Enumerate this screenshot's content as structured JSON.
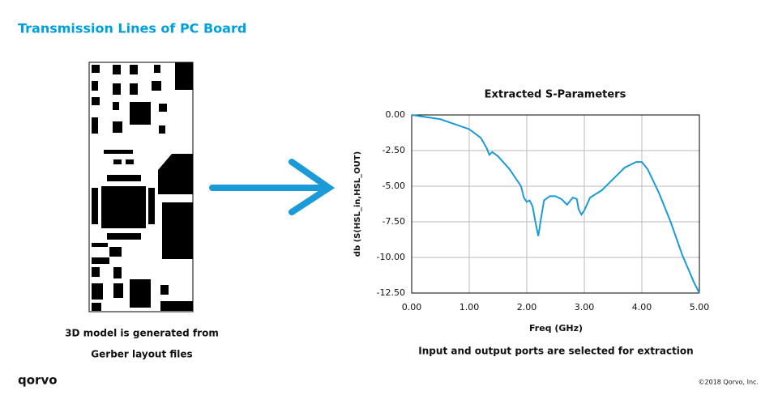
{
  "slide_title": "Transmission Lines of PC Board",
  "left_caption": [
    "3D model is generated from",
    "Gerber layout files"
  ],
  "right_caption": "Input and output ports are selected for extraction",
  "logo": "qorvo",
  "copyright": "©2018 Qorvo, Inc.",
  "chart_data": {
    "type": "line",
    "title": "Extracted S-Parameters",
    "xlabel": "Freq (GHz)",
    "ylabel": "db (S(HSL_in,HSL_OUT)",
    "x": [
      0,
      0.5,
      1.0,
      1.2,
      1.3,
      1.35,
      1.4,
      1.5,
      1.7,
      1.9,
      1.95,
      2.0,
      2.05,
      2.1,
      2.15,
      2.2,
      2.25,
      2.3,
      2.4,
      2.5,
      2.6,
      2.7,
      2.8,
      2.87,
      2.9,
      2.95,
      3.0,
      3.1,
      3.3,
      3.5,
      3.7,
      3.9,
      4.0,
      4.1,
      4.3,
      4.5,
      4.7,
      4.9,
      5.0
    ],
    "values": [
      0,
      -0.3,
      -1.0,
      -1.6,
      -2.3,
      -2.8,
      -2.6,
      -2.9,
      -3.8,
      -5.0,
      -5.8,
      -6.1,
      -6.0,
      -6.4,
      -7.5,
      -8.5,
      -7.2,
      -6.0,
      -5.7,
      -5.7,
      -5.9,
      -6.3,
      -5.8,
      -5.9,
      -6.6,
      -7.0,
      -6.7,
      -5.8,
      -5.3,
      -4.5,
      -3.7,
      -3.3,
      -3.3,
      -3.8,
      -5.5,
      -7.5,
      -9.8,
      -11.7,
      -12.5
    ],
    "color": "#1a9ad6",
    "xlim": [
      0,
      5
    ],
    "xticks": [
      {
        "value": 0,
        "label": "0.00"
      },
      {
        "value": 1,
        "label": "1.00"
      },
      {
        "value": 2,
        "label": "2.00"
      },
      {
        "value": 3,
        "label": "3.00"
      },
      {
        "value": 4,
        "label": "4.00"
      },
      {
        "value": 5,
        "label": "5.00"
      }
    ],
    "ylim": [
      -12.5,
      0
    ],
    "yticks": [
      {
        "value": 0,
        "label": "0.00"
      },
      {
        "value": -2.5,
        "label": "-2.50"
      },
      {
        "value": -5,
        "label": "-5.00"
      },
      {
        "value": -7.5,
        "label": "-7.50"
      },
      {
        "value": -10,
        "label": "-10.00"
      },
      {
        "value": -12.5,
        "label": "-12.50"
      }
    ],
    "grid": true
  }
}
